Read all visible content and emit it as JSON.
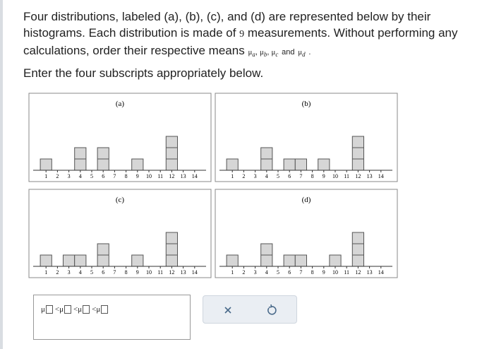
{
  "question": {
    "text_before": "Four distributions, labeled (a), (b), (c), and (d) are represented below by their histograms. Each distribution is made of",
    "count": 9,
    "text_after": "measurements. Without performing any calculations, order their respective means",
    "mean_symbol": "μ",
    "subscripts": [
      "a",
      "b",
      "c",
      "d"
    ],
    "and": "and",
    "period": ".",
    "instruction": "Enter the four subscripts appropriately below."
  },
  "answer": {
    "symbol": "μ",
    "separator": "<"
  },
  "chart_data": [
    {
      "type": "histogram",
      "title": "(a)",
      "bins": [
        0.5,
        1.5,
        2.5,
        3.5,
        4.5,
        5.5,
        6.5,
        7.5,
        8.5,
        9.5,
        10.5,
        11.5,
        12.5,
        13.5,
        14.5
      ],
      "counts": [
        1,
        0,
        0,
        2,
        0,
        2,
        0,
        0,
        1,
        0,
        0,
        3,
        0,
        0
      ],
      "xlim": [
        0,
        15
      ],
      "xticks": [
        1,
        2,
        3,
        4,
        5,
        6,
        7,
        8,
        9,
        10,
        11,
        12,
        13,
        14
      ],
      "color": "#d6d6d6"
    },
    {
      "type": "histogram",
      "title": "(b)",
      "bins": [
        0.5,
        1.5,
        2.5,
        3.5,
        4.5,
        5.5,
        6.5,
        7.5,
        8.5,
        9.5,
        10.5,
        11.5,
        12.5,
        13.5,
        14.5
      ],
      "counts": [
        1,
        0,
        0,
        2,
        0,
        1,
        1,
        0,
        1,
        0,
        0,
        3,
        0,
        0
      ],
      "xlim": [
        0,
        15
      ],
      "xticks": [
        1,
        2,
        3,
        4,
        5,
        6,
        7,
        8,
        9,
        10,
        11,
        12,
        13,
        14
      ],
      "color": "#d6d6d6"
    },
    {
      "type": "histogram",
      "title": "(c)",
      "bins": [
        0.5,
        1.5,
        2.5,
        3.5,
        4.5,
        5.5,
        6.5,
        7.5,
        8.5,
        9.5,
        10.5,
        11.5,
        12.5,
        13.5,
        14.5
      ],
      "counts": [
        1,
        0,
        1,
        1,
        0,
        2,
        0,
        0,
        1,
        0,
        0,
        3,
        0,
        0
      ],
      "xlim": [
        0,
        15
      ],
      "xticks": [
        1,
        2,
        3,
        4,
        5,
        6,
        7,
        8,
        9,
        10,
        11,
        12,
        13,
        14
      ],
      "color": "#d6d6d6"
    },
    {
      "type": "histogram",
      "title": "(d)",
      "bins": [
        0.5,
        1.5,
        2.5,
        3.5,
        4.5,
        5.5,
        6.5,
        7.5,
        8.5,
        9.5,
        10.5,
        11.5,
        12.5,
        13.5,
        14.5
      ],
      "counts": [
        1,
        0,
        0,
        2,
        0,
        1,
        1,
        0,
        0,
        1,
        0,
        3,
        0,
        0
      ],
      "xlim": [
        0,
        15
      ],
      "xticks": [
        1,
        2,
        3,
        4,
        5,
        6,
        7,
        8,
        9,
        10,
        11,
        12,
        13,
        14
      ],
      "color": "#d6d6d6"
    }
  ]
}
